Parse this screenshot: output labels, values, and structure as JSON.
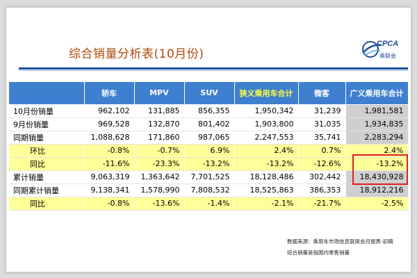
{
  "title": "综合销量分析表(10月份)",
  "logo": {
    "brand": "CPCA",
    "sub": "乘联会",
    "icon": "globe-swoosh-icon"
  },
  "colors": {
    "header_bg": "#3f7fd0",
    "highlight_text": "#ffff3c",
    "yellow_row": "#ffff99",
    "grey_col": "#cfcfcf",
    "title": "#b04a10",
    "box": "#e02020"
  },
  "table": {
    "columns": [
      "",
      "轿车",
      "MPV",
      "SUV",
      "狭义乘用车合计",
      "微客",
      "广义乘用车合计"
    ],
    "rows": [
      {
        "style": "white",
        "label": "10月份销量",
        "values": [
          "962,102",
          "131,885",
          "856,355",
          "1,950,342",
          "31,239",
          "1,981,581"
        ]
      },
      {
        "style": "white",
        "label": "9月份销量",
        "values": [
          "969,528",
          "132,870",
          "801,402",
          "1,903,800",
          "31,035",
          "1,934,835"
        ]
      },
      {
        "style": "white",
        "label": "同期销量",
        "values": [
          "1,088,628",
          "171,860",
          "987,065",
          "2,247,553",
          "35,741",
          "2,283,294"
        ]
      },
      {
        "style": "yellow",
        "label": "环比",
        "values": [
          "-0.8%",
          "-0.7%",
          "6.9%",
          "2.4%",
          "0.7%",
          "2.4%"
        ]
      },
      {
        "style": "yellow",
        "label": "同比",
        "values": [
          "-11.6%",
          "-23.3%",
          "-13.2%",
          "-13.2%",
          "-12.6%",
          "-13.2%"
        ]
      },
      {
        "style": "white",
        "label": "累计销量",
        "values": [
          "9,063,319",
          "1,363,642",
          "7,701,525",
          "18,128,486",
          "302,442",
          "18,430,928"
        ]
      },
      {
        "style": "white",
        "label": "同期累计销量",
        "values": [
          "9,138,341",
          "1,578,990",
          "7,808,532",
          "18,525,863",
          "386,353",
          "18,912,216"
        ]
      },
      {
        "style": "yellow",
        "label": "同比",
        "values": [
          "-0.8%",
          "-13.6%",
          "-1.4%",
          "-2.1%",
          "-21.7%",
          "-2.5%"
        ]
      }
    ]
  },
  "notes": {
    "source": "数据来源：乘用车市场信息联席会月报表-初稿",
    "definition": "综合销量是指国内零售销量"
  }
}
